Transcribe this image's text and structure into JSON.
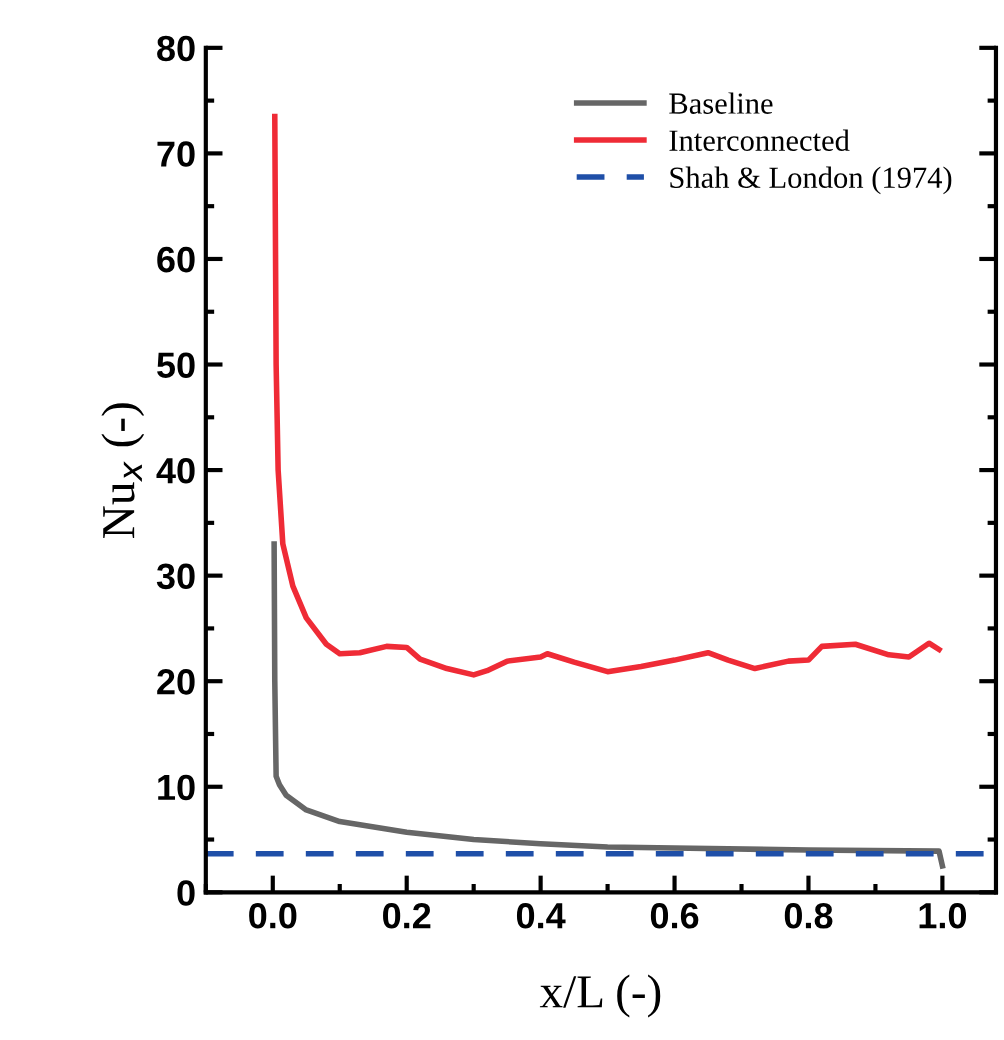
{
  "chart_data": {
    "type": "line",
    "xlabel": "x/L (-)",
    "ylabel": "Nu$_{x}$ (-)",
    "xlim": [
      -0.1,
      1.08
    ],
    "xticks": [
      {
        "value": 0.0,
        "label": "0.0"
      },
      0.2,
      0.4,
      0.6,
      0.8,
      {
        "value": 1.0,
        "label": "1.0"
      }
    ],
    "ylim": [
      0,
      80
    ],
    "yticks": [
      0,
      10,
      20,
      30,
      40,
      50,
      60,
      70,
      80
    ],
    "grid": false,
    "legend": "top right",
    "marker": "none",
    "series": [
      {
        "name": "Baseline",
        "color": "#666666",
        "line_style": "solid",
        "x": [
          0.002,
          0.003,
          0.005,
          0.01,
          0.02,
          0.05,
          0.1,
          0.2,
          0.3,
          0.4,
          0.5,
          0.6,
          0.8,
          0.995,
          1.0
        ],
        "values": [
          33,
          20,
          11,
          10.2,
          9.2,
          7.8,
          6.7,
          5.7,
          5.0,
          4.6,
          4.3,
          4.2,
          4.0,
          3.9,
          2.5
        ]
      },
      {
        "name": "Interconnected",
        "color": "#ef2b36",
        "line_style": "solid",
        "x": [
          0.003,
          0.005,
          0.008,
          0.015,
          0.03,
          0.05,
          0.08,
          0.1,
          0.13,
          0.17,
          0.2,
          0.22,
          0.26,
          0.3,
          0.32,
          0.35,
          0.4,
          0.41,
          0.45,
          0.5,
          0.55,
          0.6,
          0.65,
          0.68,
          0.72,
          0.77,
          0.8,
          0.82,
          0.87,
          0.92,
          0.95,
          0.98,
          0.995
        ],
        "values": [
          73.5,
          50,
          40,
          33,
          29,
          26,
          23.5,
          22.6,
          22.7,
          23.3,
          23.2,
          22.1,
          21.2,
          20.6,
          21.0,
          21.9,
          22.3,
          22.6,
          21.8,
          20.9,
          21.4,
          22.0,
          22.7,
          22.0,
          21.2,
          21.9,
          22.0,
          23.3,
          23.5,
          22.5,
          22.3,
          23.6,
          23.0
        ]
      },
      {
        "name": "Shah & London (1974)",
        "color": "#1f4fa8",
        "line_style": "dashed",
        "x": [
          -0.1,
          1.08
        ],
        "values": [
          3.66,
          3.66
        ]
      }
    ]
  }
}
